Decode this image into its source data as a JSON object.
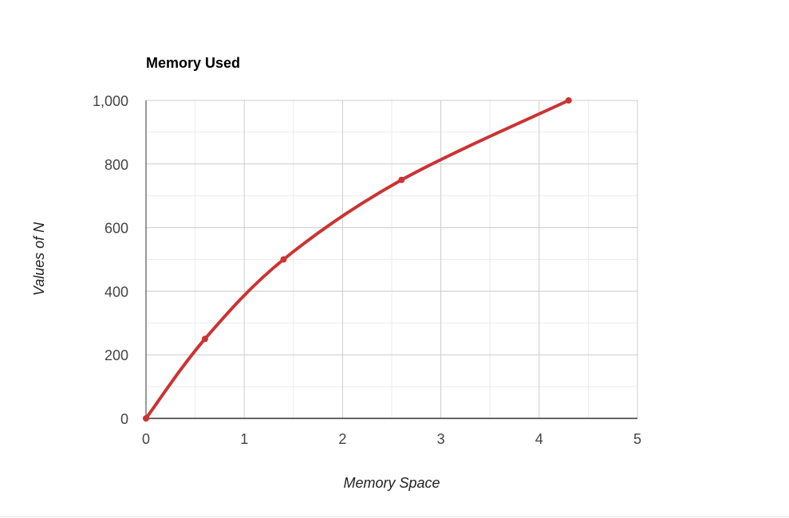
{
  "chart_data": {
    "type": "line",
    "title": "Memory Used",
    "xlabel": "Memory Space",
    "ylabel": "Values of N",
    "xlim": [
      0,
      5
    ],
    "ylim": [
      0,
      1000
    ],
    "xticks": [
      0,
      1,
      2,
      3,
      4,
      5
    ],
    "xtick_labels": [
      "0",
      "1",
      "2",
      "3",
      "4",
      "5"
    ],
    "yticks": [
      0,
      200,
      400,
      600,
      800,
      1000
    ],
    "ytick_labels": [
      "0",
      "200",
      "400",
      "600",
      "800",
      "1,000"
    ],
    "grid": true,
    "legend": "none",
    "series": [
      {
        "name": "Values of N",
        "color": "#cc3333",
        "x": [
          0,
          0.6,
          1.4,
          2.6,
          4.3
        ],
        "y": [
          0,
          250,
          500,
          750,
          1000
        ]
      }
    ]
  }
}
